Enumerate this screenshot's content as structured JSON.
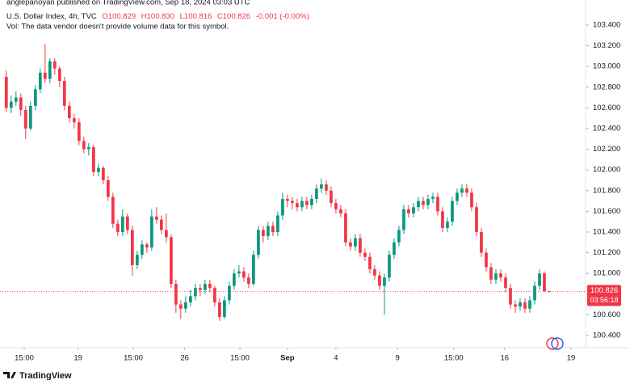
{
  "header": {
    "published": "anglepanoyan published on TradingView.com, Sep 18, 2024 03:03 UTC",
    "symbol": "U.S. Dollar Index, 4h, TVC",
    "open": "O100.829",
    "high": "H100.830",
    "low": "L100.816",
    "close": "C100.826",
    "change": "-0.001 (-0.00%)",
    "volume_note": "Vol: The data vendor doesn't provide volume data for this symbol."
  },
  "footer": {
    "brand": "TradingView"
  },
  "chart_data": {
    "type": "candlestick",
    "up_color": "#089981",
    "down_color": "#f23645",
    "grid": false,
    "xlim": [
      -1.3,
      119.5
    ],
    "ylim": [
      100.283,
      103.642
    ],
    "xticks": [
      {
        "value": 3.7,
        "label": "15:00"
      },
      {
        "value": 14.8,
        "label": "19"
      },
      {
        "value": 26.2,
        "label": "15:00"
      },
      {
        "value": 36.8,
        "label": "26"
      },
      {
        "value": 48.2,
        "label": "15:00"
      },
      {
        "value": 58,
        "label": "Sep"
      },
      {
        "value": 68,
        "label": "4"
      },
      {
        "value": 80.7,
        "label": "9"
      },
      {
        "value": 92.3,
        "label": "15:00"
      },
      {
        "value": 102.8,
        "label": "16"
      },
      {
        "value": 116.5,
        "label": "19"
      }
    ],
    "yticks": [
      {
        "value": 103.4,
        "label": "103.400"
      },
      {
        "value": 103.2,
        "label": "103.200"
      },
      {
        "value": 103,
        "label": "103.000"
      },
      {
        "value": 102.8,
        "label": "102.800"
      },
      {
        "value": 102.6,
        "label": "102.600"
      },
      {
        "value": 102.4,
        "label": "102.400"
      },
      {
        "value": 102.2,
        "label": "102.200"
      },
      {
        "value": 102,
        "label": "102.000"
      },
      {
        "value": 101.8,
        "label": "101.800"
      },
      {
        "value": 101.6,
        "label": "101.600"
      },
      {
        "value": 101.4,
        "label": "101.400"
      },
      {
        "value": 101.2,
        "label": "101.200"
      },
      {
        "value": 101,
        "label": "101.000"
      },
      {
        "value": 100.6,
        "label": "100.600"
      },
      {
        "value": 100.4,
        "label": "100.400"
      }
    ],
    "last_price": 100.826,
    "countdown": "03:56:18",
    "ohlc": [
      [
        102.9,
        102.96,
        102.56,
        102.6
      ],
      [
        102.6,
        102.72,
        102.55,
        102.66
      ],
      [
        102.66,
        102.76,
        102.62,
        102.7
      ],
      [
        102.7,
        102.74,
        102.52,
        102.58
      ],
      [
        102.58,
        102.62,
        102.3,
        102.4
      ],
      [
        102.4,
        102.66,
        102.38,
        102.62
      ],
      [
        102.62,
        102.82,
        102.58,
        102.78
      ],
      [
        102.78,
        102.98,
        102.74,
        102.94
      ],
      [
        102.94,
        103.22,
        102.84,
        102.88
      ],
      [
        102.88,
        103.08,
        102.84,
        103.05
      ],
      [
        103.05,
        103.08,
        102.92,
        102.98
      ],
      [
        102.98,
        103.0,
        102.8,
        102.86
      ],
      [
        102.86,
        102.9,
        102.58,
        102.62
      ],
      [
        102.62,
        102.66,
        102.46,
        102.5
      ],
      [
        102.5,
        102.54,
        102.4,
        102.46
      ],
      [
        102.46,
        102.5,
        102.24,
        102.28
      ],
      [
        102.28,
        102.32,
        102.16,
        102.2
      ],
      [
        102.2,
        102.26,
        102.14,
        102.22
      ],
      [
        102.22,
        102.24,
        101.94,
        101.98
      ],
      [
        101.98,
        102.06,
        101.94,
        102.02
      ],
      [
        102.02,
        102.04,
        101.86,
        101.9
      ],
      [
        101.9,
        101.94,
        101.7,
        101.74
      ],
      [
        101.74,
        101.78,
        101.44,
        101.48
      ],
      [
        101.48,
        101.52,
        101.36,
        101.4
      ],
      [
        101.4,
        101.62,
        101.36,
        101.55
      ],
      [
        101.55,
        101.58,
        101.38,
        101.42
      ],
      [
        101.42,
        101.46,
        100.98,
        101.08
      ],
      [
        101.08,
        101.22,
        101.04,
        101.18
      ],
      [
        101.18,
        101.32,
        101.14,
        101.28
      ],
      [
        101.28,
        101.3,
        101.2,
        101.25
      ],
      [
        101.25,
        101.62,
        101.22,
        101.55
      ],
      [
        101.55,
        101.64,
        101.48,
        101.52
      ],
      [
        101.52,
        101.56,
        101.38,
        101.42
      ],
      [
        101.42,
        101.58,
        101.3,
        101.35
      ],
      [
        101.35,
        101.38,
        100.86,
        100.9
      ],
      [
        100.9,
        100.94,
        100.62,
        100.7
      ],
      [
        100.7,
        100.74,
        100.56,
        100.66
      ],
      [
        100.66,
        100.78,
        100.62,
        100.72
      ],
      [
        100.72,
        100.84,
        100.68,
        100.78
      ],
      [
        100.78,
        100.9,
        100.74,
        100.86
      ],
      [
        100.86,
        100.9,
        100.78,
        100.84
      ],
      [
        100.84,
        100.94,
        100.8,
        100.9
      ],
      [
        100.9,
        100.94,
        100.82,
        100.86
      ],
      [
        100.86,
        100.88,
        100.68,
        100.72
      ],
      [
        100.72,
        100.76,
        100.54,
        100.58
      ],
      [
        100.58,
        100.78,
        100.56,
        100.74
      ],
      [
        100.74,
        100.92,
        100.7,
        100.88
      ],
      [
        100.88,
        101.04,
        100.84,
        101.0
      ],
      [
        101.0,
        101.08,
        100.96,
        101.02
      ],
      [
        101.02,
        101.06,
        100.92,
        100.96
      ],
      [
        100.96,
        101.0,
        100.86,
        100.9
      ],
      [
        100.9,
        101.22,
        100.88,
        101.18
      ],
      [
        101.18,
        101.46,
        101.14,
        101.42
      ],
      [
        101.42,
        101.46,
        101.3,
        101.36
      ],
      [
        101.36,
        101.5,
        101.32,
        101.46
      ],
      [
        101.46,
        101.5,
        101.36,
        101.4
      ],
      [
        101.4,
        101.6,
        101.36,
        101.56
      ],
      [
        101.56,
        101.78,
        101.52,
        101.72
      ],
      [
        101.72,
        101.76,
        101.64,
        101.7
      ],
      [
        101.7,
        101.74,
        101.62,
        101.68
      ],
      [
        101.68,
        101.72,
        101.6,
        101.64
      ],
      [
        101.64,
        101.74,
        101.6,
        101.7
      ],
      [
        101.7,
        101.74,
        101.62,
        101.66
      ],
      [
        101.66,
        101.76,
        101.62,
        101.72
      ],
      [
        101.72,
        101.86,
        101.68,
        101.82
      ],
      [
        101.82,
        101.92,
        101.78,
        101.86
      ],
      [
        101.86,
        101.9,
        101.76,
        101.8
      ],
      [
        101.8,
        101.84,
        101.64,
        101.68
      ],
      [
        101.68,
        101.72,
        101.58,
        101.62
      ],
      [
        101.62,
        101.66,
        101.54,
        101.58
      ],
      [
        101.58,
        101.62,
        101.26,
        101.3
      ],
      [
        101.3,
        101.34,
        101.22,
        101.26
      ],
      [
        101.26,
        101.38,
        101.22,
        101.34
      ],
      [
        101.34,
        101.38,
        101.16,
        101.2
      ],
      [
        101.2,
        101.24,
        101.12,
        101.16
      ],
      [
        101.16,
        101.2,
        101.0,
        101.04
      ],
      [
        101.04,
        101.08,
        100.94,
        100.98
      ],
      [
        100.98,
        101.02,
        100.84,
        100.88
      ],
      [
        100.88,
        101.0,
        100.6,
        100.96
      ],
      [
        100.96,
        101.22,
        100.92,
        101.18
      ],
      [
        101.18,
        101.34,
        101.14,
        101.3
      ],
      [
        101.3,
        101.46,
        101.26,
        101.42
      ],
      [
        101.42,
        101.66,
        101.38,
        101.62
      ],
      [
        101.62,
        101.66,
        101.54,
        101.58
      ],
      [
        101.58,
        101.68,
        101.54,
        101.64
      ],
      [
        101.64,
        101.74,
        101.6,
        101.7
      ],
      [
        101.7,
        101.74,
        101.62,
        101.66
      ],
      [
        101.66,
        101.76,
        101.62,
        101.72
      ],
      [
        101.72,
        101.78,
        101.68,
        101.74
      ],
      [
        101.74,
        101.78,
        101.56,
        101.6
      ],
      [
        101.6,
        101.64,
        101.4,
        101.44
      ],
      [
        101.44,
        101.54,
        101.4,
        101.5
      ],
      [
        101.5,
        101.74,
        101.46,
        101.7
      ],
      [
        101.7,
        101.82,
        101.66,
        101.78
      ],
      [
        101.78,
        101.86,
        101.74,
        101.82
      ],
      [
        101.82,
        101.86,
        101.74,
        101.78
      ],
      [
        101.78,
        101.82,
        101.6,
        101.64
      ],
      [
        101.64,
        101.68,
        101.36,
        101.4
      ],
      [
        101.4,
        101.44,
        101.16,
        101.2
      ],
      [
        101.2,
        101.24,
        101.02,
        101.06
      ],
      [
        101.06,
        101.1,
        100.9,
        100.94
      ],
      [
        100.94,
        101.04,
        100.9,
        101.0
      ],
      [
        101.0,
        101.04,
        100.92,
        100.96
      ],
      [
        100.96,
        101.0,
        100.82,
        100.86
      ],
      [
        100.86,
        100.9,
        100.66,
        100.7
      ],
      [
        100.7,
        100.74,
        100.62,
        100.68
      ],
      [
        100.68,
        100.76,
        100.64,
        100.72
      ],
      [
        100.72,
        100.76,
        100.62,
        100.66
      ],
      [
        100.66,
        100.78,
        100.62,
        100.74
      ],
      [
        100.74,
        100.92,
        100.7,
        100.88
      ],
      [
        100.88,
        101.04,
        100.84,
        101.0
      ],
      [
        101.0,
        101.02,
        100.82,
        100.83
      ],
      [
        100.829,
        100.83,
        100.816,
        100.826
      ]
    ]
  }
}
